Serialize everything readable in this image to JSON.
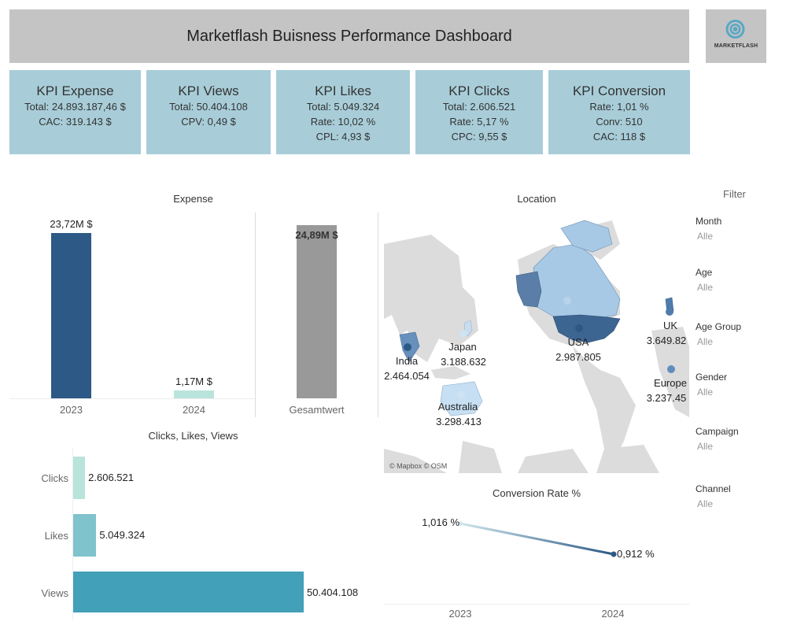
{
  "header": {
    "title": "Marketflash Buisness Performance Dashboard",
    "logo_text": "MARKETFLASH"
  },
  "kpis": [
    {
      "title": "KPI Expense",
      "lines": [
        "Total: 24.893.187,46 $",
        "CAC: 319.143 $"
      ]
    },
    {
      "title": "KPI Views",
      "lines": [
        "Total: 50.404.108",
        "CPV: 0,49 $"
      ]
    },
    {
      "title": "KPI Likes",
      "lines": [
        "Total: 5.049.324",
        "Rate: 10,02 %",
        "CPL: 4,93 $"
      ]
    },
    {
      "title": "KPI Clicks",
      "lines": [
        "Total: 2.606.521",
        "Rate: 5,17  %",
        "CPC: 9,55 $"
      ]
    },
    {
      "title": "KPI Conversion",
      "lines": [
        "Rate: 1,01 %",
        "Conv: 510",
        "CAC: 118 $"
      ]
    }
  ],
  "expense": {
    "title": "Expense",
    "bars": [
      {
        "category": "2023",
        "label": "23,72M $",
        "value": 23.72
      },
      {
        "category": "2024",
        "label": "1,17M $",
        "value": 1.17
      }
    ],
    "total": {
      "category": "Gesamtwert",
      "label": "24,89M $",
      "value": 24.89
    }
  },
  "location": {
    "title": "Location",
    "attribution": "© Mapbox © OSM",
    "markers": [
      {
        "name": "India",
        "value": "2.464.054"
      },
      {
        "name": "Japan",
        "value": "3.188.632"
      },
      {
        "name": "USA",
        "value": "2.987.805"
      },
      {
        "name": "UK",
        "value": "3.649.82"
      },
      {
        "name": "Europe",
        "value": "3.237.45"
      },
      {
        "name": "Australia",
        "value": "3.298.413"
      }
    ]
  },
  "filters": {
    "title": "Filter",
    "items": [
      {
        "label": "Month",
        "value": "Alle"
      },
      {
        "label": "Age",
        "value": "Alle"
      },
      {
        "label": "Age Group",
        "value": "Alle"
      },
      {
        "label": "Gender",
        "value": "Alle"
      },
      {
        "label": "Campaign",
        "value": "Alle"
      },
      {
        "label": "Channel",
        "value": "Alle"
      }
    ]
  },
  "engagement": {
    "title": "Clicks, Likes, Views",
    "bars": [
      {
        "category": "Clicks",
        "label": "2.606.521",
        "value": 2606521,
        "color": "#b9e4db"
      },
      {
        "category": "Likes",
        "label": "5.049.324",
        "value": 5049324,
        "color": "#7fc3cc"
      },
      {
        "category": "Views",
        "label": "50.404.108",
        "value": 50404108,
        "color": "#42a0b8"
      }
    ]
  },
  "conversion": {
    "title": "Conversion Rate %",
    "points": [
      {
        "category": "2023",
        "label": "1,016 %",
        "value": 1.016
      },
      {
        "category": "2024",
        "label": "0,912 %",
        "value": 0.912
      }
    ]
  },
  "colors": {
    "title_bg": "#c4c4c4",
    "kpi_bg": "#a8cdd8",
    "bar_2023": "#2c5985",
    "bar_2024": "#b9e4db",
    "bar_total": "#999999"
  },
  "chart_data": [
    {
      "type": "bar",
      "title": "Expense",
      "categories": [
        "2023",
        "2024",
        "Gesamtwert"
      ],
      "values": [
        23.72,
        1.17,
        24.89
      ],
      "unit": "M $"
    },
    {
      "type": "bar",
      "title": "Clicks, Likes, Views",
      "categories": [
        "Clicks",
        "Likes",
        "Views"
      ],
      "values": [
        2606521,
        5049324,
        50404108
      ]
    },
    {
      "type": "line",
      "title": "Conversion Rate %",
      "x": [
        "2023",
        "2024"
      ],
      "values": [
        1.016,
        0.912
      ]
    }
  ]
}
